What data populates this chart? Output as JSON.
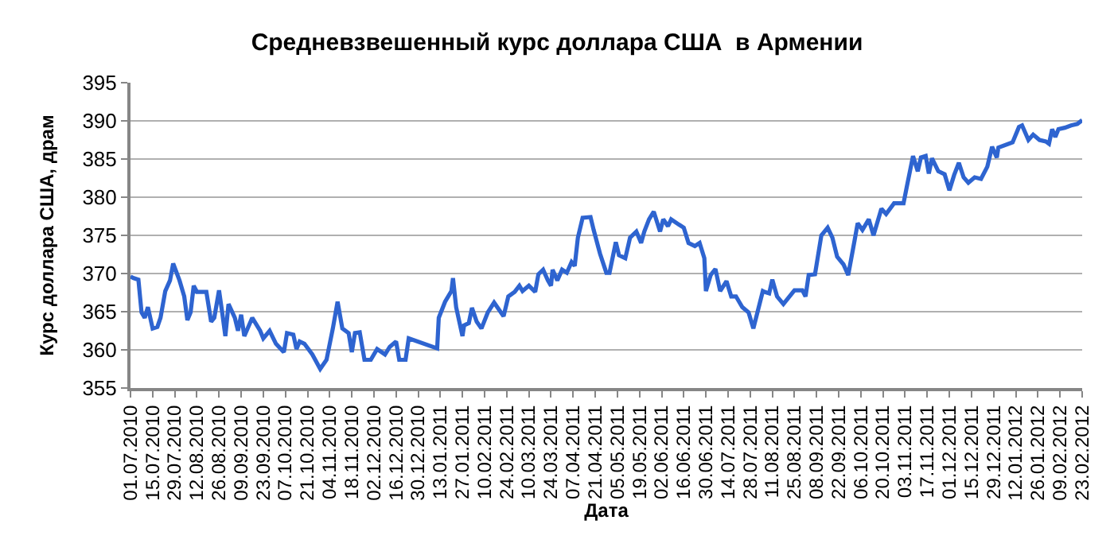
{
  "chart_data": {
    "type": "line",
    "title": "Средневзвешенный курс доллара США  в Армении",
    "xlabel": "Дата",
    "ylabel": "Курс доллара США, драм",
    "x": [
      "2010-07-01",
      "2010-07-03",
      "2010-07-06",
      "2010-07-08",
      "2010-07-10",
      "2010-07-12",
      "2010-07-15",
      "2010-07-18",
      "2010-07-20",
      "2010-07-23",
      "2010-07-26",
      "2010-07-28",
      "2010-08-01",
      "2010-08-04",
      "2010-08-06",
      "2010-08-08",
      "2010-08-10",
      "2010-08-12",
      "2010-08-18",
      "2010-08-21",
      "2010-08-23",
      "2010-08-26",
      "2010-08-28",
      "2010-08-30",
      "2010-09-01",
      "2010-09-05",
      "2010-09-07",
      "2010-09-09",
      "2010-09-11",
      "2010-09-16",
      "2010-09-21",
      "2010-09-23",
      "2010-09-27",
      "2010-10-01",
      "2010-10-06",
      "2010-10-08",
      "2010-10-12",
      "2010-10-14",
      "2010-10-16",
      "2010-10-19",
      "2010-10-24",
      "2010-10-29",
      "2010-11-02",
      "2010-11-06",
      "2010-11-09",
      "2010-11-12",
      "2010-11-16",
      "2010-11-18",
      "2010-11-20",
      "2010-11-23",
      "2010-11-26",
      "2010-11-30",
      "2010-12-04",
      "2010-12-09",
      "2010-12-12",
      "2010-12-16",
      "2010-12-18",
      "2010-12-22",
      "2010-12-24",
      "2011-01-11",
      "2011-01-12",
      "2011-01-16",
      "2011-01-20",
      "2011-01-21",
      "2011-01-23",
      "2011-01-27",
      "2011-01-28",
      "2011-01-31",
      "2011-02-02",
      "2011-02-05",
      "2011-02-08",
      "2011-02-12",
      "2011-02-16",
      "2011-02-22",
      "2011-02-25",
      "2011-03-01",
      "2011-03-04",
      "2011-03-06",
      "2011-03-10",
      "2011-03-14",
      "2011-03-16",
      "2011-03-19",
      "2011-03-22",
      "2011-03-24",
      "2011-03-25",
      "2011-03-28",
      "2011-03-31",
      "2011-04-03",
      "2011-04-06",
      "2011-04-08",
      "2011-04-10",
      "2011-04-13",
      "2011-04-18",
      "2011-04-20",
      "2011-04-24",
      "2011-04-28",
      "2011-04-30",
      "2011-05-04",
      "2011-05-06",
      "2011-05-10",
      "2011-05-13",
      "2011-05-17",
      "2011-05-20",
      "2011-05-22",
      "2011-05-25",
      "2011-05-28",
      "2011-06-01",
      "2011-06-03",
      "2011-06-06",
      "2011-06-08",
      "2011-06-13",
      "2011-06-16",
      "2011-06-19",
      "2011-06-23",
      "2011-06-26",
      "2011-06-29",
      "2011-06-30",
      "2011-07-03",
      "2011-07-06",
      "2011-07-09",
      "2011-07-13",
      "2011-07-16",
      "2011-07-19",
      "2011-07-23",
      "2011-07-27",
      "2011-07-30",
      "2011-08-05",
      "2011-08-06",
      "2011-08-09",
      "2011-08-11",
      "2011-08-14",
      "2011-08-18",
      "2011-08-25",
      "2011-08-30",
      "2011-09-01",
      "2011-09-03",
      "2011-09-07",
      "2011-09-11",
      "2011-09-15",
      "2011-09-18",
      "2011-09-21",
      "2011-09-25",
      "2011-09-28",
      "2011-10-02",
      "2011-10-04",
      "2011-10-07",
      "2011-10-11",
      "2011-10-14",
      "2011-10-19",
      "2011-10-22",
      "2011-10-27",
      "2011-11-02",
      "2011-11-04",
      "2011-11-08",
      "2011-11-11",
      "2011-11-13",
      "2011-11-16",
      "2011-11-18",
      "2011-11-20",
      "2011-11-24",
      "2011-11-28",
      "2011-12-01",
      "2011-12-04",
      "2011-12-07",
      "2011-12-10",
      "2011-12-13",
      "2011-12-17",
      "2011-12-21",
      "2011-12-25",
      "2011-12-28",
      "2011-12-31",
      "2012-01-01",
      "2012-01-10",
      "2012-01-14",
      "2012-01-16",
      "2012-01-20",
      "2012-01-23",
      "2012-01-27",
      "2012-01-31",
      "2012-02-02",
      "2012-02-04",
      "2012-02-06",
      "2012-02-08",
      "2012-02-12",
      "2012-02-16",
      "2012-02-20",
      "2012-02-23"
    ],
    "series": [
      {
        "color": "#2e64d0",
        "values": [
          369.6,
          369.4,
          369.2,
          364.9,
          364.2,
          365.6,
          362.8,
          363,
          364.2,
          367.7,
          369.1,
          371.3,
          369.1,
          367,
          363.9,
          364.9,
          368.4,
          367.6,
          367.6,
          363.7,
          364.2,
          367.8,
          364.9,
          361.8,
          366,
          364.2,
          362.5,
          364.6,
          361.8,
          364.2,
          362.5,
          361.5,
          362.5,
          360.8,
          359.7,
          362.2,
          362,
          360.1,
          361.1,
          360.8,
          359.4,
          357.5,
          358.7,
          362.8,
          366.3,
          362.8,
          362.2,
          359.7,
          362.2,
          362.3,
          358.7,
          358.7,
          360.1,
          359.4,
          360.4,
          361.1,
          358.7,
          358.7,
          361.5,
          360.2,
          364.2,
          366.3,
          367.7,
          369.4,
          365.6,
          361.8,
          363.2,
          363.5,
          365.5,
          363.7,
          362.8,
          364.9,
          366.2,
          364.4,
          367,
          367.6,
          368.4,
          367.7,
          368.4,
          367.6,
          369.9,
          370.5,
          369.1,
          368.4,
          370.5,
          369.1,
          370.5,
          370.1,
          371.5,
          371,
          374.7,
          377.3,
          377.4,
          375.7,
          372.6,
          370.1,
          370.1,
          374.1,
          372.4,
          372,
          374.7,
          375.5,
          374,
          375.5,
          377.1,
          378.1,
          375.5,
          377.1,
          376.2,
          377.1,
          376.4,
          376,
          374,
          373.6,
          374,
          372,
          367.7,
          369.8,
          370.6,
          367.7,
          369,
          367,
          367,
          365.6,
          364.9,
          362.8,
          367.7,
          367.6,
          367.4,
          369.2,
          367,
          366,
          367.8,
          367.8,
          367,
          369.8,
          369.9,
          375,
          376,
          374.7,
          372.2,
          371.2,
          369.8,
          374.3,
          376.6,
          375.7,
          377.1,
          375,
          378.5,
          377.8,
          379.2,
          379.2,
          381.3,
          385.4,
          383.4,
          385.2,
          385.4,
          383.1,
          385.1,
          383.4,
          383,
          380.9,
          382.9,
          384.5,
          382.6,
          381.9,
          382.6,
          382.4,
          384,
          386.6,
          385.2,
          386.5,
          387.2,
          389.2,
          389.4,
          387.5,
          388.2,
          387.5,
          387.3,
          387,
          388.9,
          387.9,
          388.9,
          389.1,
          389.4,
          389.6,
          390.1
        ]
      }
    ],
    "xlim": [
      "2010-07-01",
      "2012-02-23"
    ],
    "xticks": [
      {
        "value": "2010-07-01",
        "label": "01.07.2010"
      },
      {
        "value": "2010-07-15",
        "label": "15.07.2010"
      },
      {
        "value": "2010-07-29",
        "label": "29.07.2010"
      },
      {
        "value": "2010-08-12",
        "label": "12.08.2010"
      },
      {
        "value": "2010-08-26",
        "label": "26.08.2010"
      },
      {
        "value": "2010-09-09",
        "label": "09.09.2010"
      },
      {
        "value": "2010-09-23",
        "label": "23.09.2010"
      },
      {
        "value": "2010-10-07",
        "label": "07.10.2010"
      },
      {
        "value": "2010-10-21",
        "label": "21.10.2010"
      },
      {
        "value": "2010-11-04",
        "label": "04.11.2010"
      },
      {
        "value": "2010-11-18",
        "label": "18.11.2010"
      },
      {
        "value": "2010-12-02",
        "label": "02.12.2010"
      },
      {
        "value": "2010-12-16",
        "label": "16.12.2010"
      },
      {
        "value": "2010-12-30",
        "label": "30.12.2010"
      },
      {
        "value": "2011-01-13",
        "label": "13.01.2011"
      },
      {
        "value": "2011-01-27",
        "label": "27.01.2011"
      },
      {
        "value": "2011-02-10",
        "label": "10.02.2011"
      },
      {
        "value": "2011-02-24",
        "label": "24.02.2011"
      },
      {
        "value": "2011-03-10",
        "label": "10.03.2011"
      },
      {
        "value": "2011-03-24",
        "label": "24.03.2011"
      },
      {
        "value": "2011-04-07",
        "label": "07.04.2011"
      },
      {
        "value": "2011-04-21",
        "label": "21.04.2011"
      },
      {
        "value": "2011-05-05",
        "label": "05.05.2011"
      },
      {
        "value": "2011-05-19",
        "label": "19.05.2011"
      },
      {
        "value": "2011-06-02",
        "label": "02.06.2011"
      },
      {
        "value": "2011-06-16",
        "label": "16.06.2011"
      },
      {
        "value": "2011-06-30",
        "label": "30.06.2011"
      },
      {
        "value": "2011-07-14",
        "label": "14.07.2011"
      },
      {
        "value": "2011-07-28",
        "label": "28.07.2011"
      },
      {
        "value": "2011-08-11",
        "label": "11.08.2011"
      },
      {
        "value": "2011-08-25",
        "label": "25.08.2011"
      },
      {
        "value": "2011-09-08",
        "label": "08.09.2011"
      },
      {
        "value": "2011-09-22",
        "label": "22.09.2011"
      },
      {
        "value": "2011-10-06",
        "label": "06.10.2011"
      },
      {
        "value": "2011-10-20",
        "label": "20.10.2011"
      },
      {
        "value": "2011-11-03",
        "label": "03.11.2011"
      },
      {
        "value": "2011-11-17",
        "label": "17.11.2011"
      },
      {
        "value": "2011-12-01",
        "label": "01.12.2011"
      },
      {
        "value": "2011-12-15",
        "label": "15.12.2011"
      },
      {
        "value": "2011-12-29",
        "label": "29.12.2011"
      },
      {
        "value": "2012-01-12",
        "label": "12.01.2012"
      },
      {
        "value": "2012-01-26",
        "label": "26.01.2012"
      },
      {
        "value": "2012-02-09",
        "label": "09.02.2012"
      },
      {
        "value": "2012-02-23",
        "label": "23.02.2012"
      }
    ],
    "ylim": [
      355,
      395
    ],
    "yticks": [
      355,
      360,
      365,
      370,
      375,
      380,
      385,
      390,
      395
    ],
    "grid": "y",
    "legend": false,
    "marker": "none",
    "line_style": "solid"
  }
}
